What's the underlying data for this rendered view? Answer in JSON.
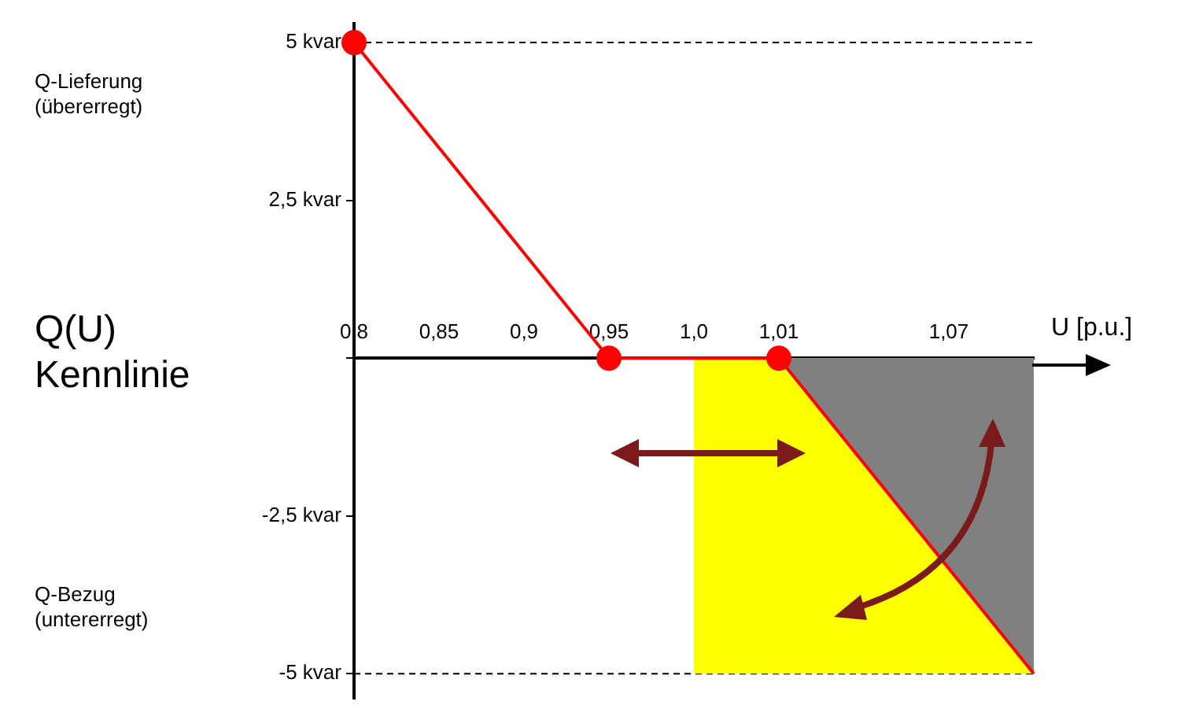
{
  "chart_data": {
    "type": "line",
    "xlabel": "U [p.u.]",
    "categories": [
      "0,8",
      "0,85",
      "0,9",
      "0,95",
      "1,0",
      "1,01",
      null,
      "1,07",
      null
    ],
    "ylim": [
      -5.4,
      5.3
    ],
    "yticks": [
      {
        "value": 5,
        "label": "5 kvar"
      },
      {
        "value": 2.5,
        "label": "2,5 kvar"
      },
      {
        "value": 0,
        "label": null
      },
      {
        "value": -2.5,
        "label": "-2,5 kvar"
      },
      {
        "value": -5,
        "label": "-5 kvar"
      }
    ],
    "series": [
      {
        "type": "area",
        "color": "#ffff00",
        "values": [
          null,
          null,
          null,
          null,
          -5,
          null,
          null,
          null,
          -5
        ]
      },
      {
        "type": "area",
        "color": "#808080",
        "values": [
          null,
          null,
          null,
          null,
          null,
          0,
          null,
          null,
          -5
        ]
      },
      {
        "type": "line",
        "color": "#ff0000",
        "marker": "none",
        "values": [
          5,
          null,
          null,
          0,
          null,
          0,
          null,
          null,
          -5
        ]
      },
      {
        "type": "scatter",
        "color": "#ff0000",
        "marker": "circle",
        "x": [
          "0,8",
          "0,95",
          "1,01"
        ],
        "values": [
          5,
          0,
          0
        ]
      }
    ],
    "ref_lines": [
      {
        "axis": "y",
        "value": 5,
        "line_style": "dashed",
        "color": "#000000"
      },
      {
        "axis": "y",
        "value": -5,
        "line_style": "dashed",
        "color": "#000000"
      }
    ],
    "annotations": [
      "Q-Lieferung\n(übererregt)",
      "Q(U)\nKennlinie",
      "Q-Bezug\n(untererregt)"
    ],
    "grid": false,
    "legend": false
  }
}
